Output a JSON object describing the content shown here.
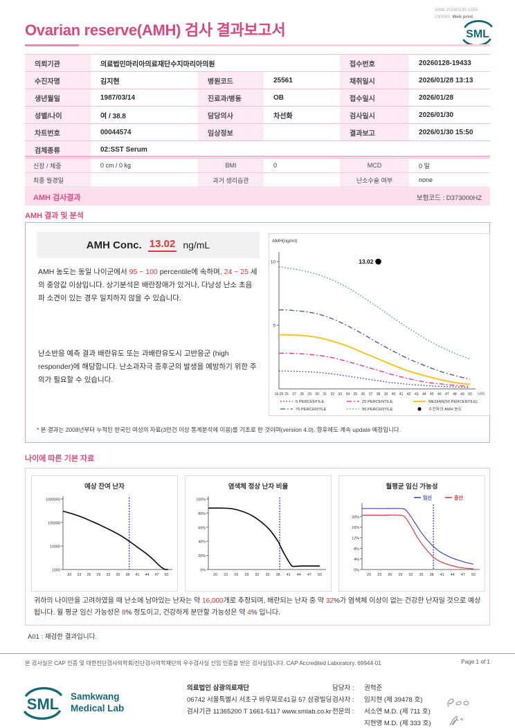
{
  "meta": {
    "print_code_line1": "3068-20260130-1555",
    "print_code_line2": "230083",
    "print_mode": "Web print"
  },
  "header": {
    "title": "Ovarian reserve(AMH) 검사 결과보고서",
    "logo_text": "SML"
  },
  "colors": {
    "accent_pink": "#d6487e",
    "label_bg": "#fce9f1",
    "banner_bg": "#fbdfeb",
    "alert_red": "#e03531",
    "logo_teal": "#156a77"
  },
  "patient_table": {
    "r1": {
      "l1": "의뢰기관",
      "v1": "의료법인마리아의료재단수지마리아의원",
      "l3": "접수번호",
      "v3": "20260128-19433"
    },
    "r2": {
      "l1": "수진자명",
      "v1": "김지현",
      "l2": "병원코드",
      "v2": "25561",
      "l3": "채취일시",
      "v3": "2026/01/28 13:13"
    },
    "r3": {
      "l1": "생년월일",
      "v1": "1987/03/14",
      "l2": "진료과/병동",
      "v2": "OB",
      "l3": "접수일시",
      "v3": "2026/01/28"
    },
    "r4": {
      "l1": "성별/나이",
      "v1": "여 / 38.8",
      "l2": "담당의사",
      "v2": "차선화",
      "l3": "검사일시",
      "v3": "2026/01/30"
    },
    "r5": {
      "l1": "차트번호",
      "v1": "00044574",
      "l2": "임상정보",
      "v2": "",
      "l3": "결과보고",
      "v3": "2026/01/30 15:50"
    },
    "r6": {
      "l1": "검체종류",
      "v1": "02:SST Serum"
    }
  },
  "measure_table": {
    "r1": {
      "l1": "신장 / 체중",
      "v1": "0 cm / 0 kg",
      "l2": "BMI",
      "v2": "0",
      "l3": "MCD",
      "v3": "0 일"
    },
    "r2": {
      "l1": "최종 월경일",
      "v1": "",
      "l2": "과거 생리습관",
      "v2": "",
      "l3": "난소수술 여부",
      "v3": "none"
    }
  },
  "banner": {
    "title": "AMH 검사결과",
    "insurance_code": "보험코드 : D373000HZ"
  },
  "analysis": {
    "section_title": "AMH 결과 및 분석",
    "conc_label": "AMH Conc.",
    "conc_value": "13.02",
    "conc_unit": "ng/mL",
    "para1": [
      {
        "t": "AMH 농도는 동일 나이군에서 "
      },
      {
        "t": "95 ~ 100"
      },
      {
        "t": " percentile에 속하며, "
      },
      {
        "t": "24 ~ 25"
      },
      {
        "t": " 세의 중앙값 이상입니다. 상기분석은 배란장애가 있거나, 다낭성 난소 초음파 소견이 있는 경우 일치하지 않을 수 있습니다."
      }
    ],
    "para2": "난소반응 예측 결과 배란유도 또는 과배란유도시 고반응군 (high responder)에 해당합니다. 난소과자극 증후군의 발생을 예방하기 위한 주의가 필요할 수 있습니다.",
    "footnote": "* 본 결과는 2008년부터 누적된 한국인 여성의 자료(3만건 이상 통계분석에 이용)를 기초로 한 것이며(version 4.0), 향후에도 계속 update 예정입니다."
  },
  "age_section": {
    "section_title": "나이에 따른 기본 자료",
    "summary": [
      {
        "t": "귀하의 나이만을 고려하였을 때 난소에 남아있는 난자는 약 "
      },
      {
        "t": "16,000"
      },
      {
        "t": "개로 추정되며, 배란되는 난자 중 약 "
      },
      {
        "t": "32"
      },
      {
        "t": "%가 염색체 이상이 없는 건강한 난자일 것으로 예상됩니다. 월 평균 임신 가능성은 "
      },
      {
        "t": "8"
      },
      {
        "t": "% 정도이고, 건강하게 분만할 가능성은 약 "
      },
      {
        "t": "4"
      },
      {
        "t": "% 입니다."
      }
    ],
    "note_a01": "A01 : 재검한 결과입니다."
  },
  "chart_data": [
    {
      "type": "line",
      "title": "AMH percentile curves by age",
      "ylabel": "AMH(ng/ml)",
      "xlabel": "나이",
      "ylim": [
        0,
        11
      ],
      "yticks": [
        5,
        10
      ],
      "x_ticks": [
        "16-25",
        "26",
        "27",
        "28",
        "29",
        "30",
        "31",
        "32",
        "33",
        "34",
        "35",
        "36",
        "37",
        "38",
        "39",
        "40",
        "41",
        "42",
        "43",
        "44",
        "45",
        "46",
        "47",
        "48",
        "49",
        "50"
      ],
      "patient": {
        "age": 38,
        "value": 13.02,
        "plot_value": 10,
        "label": "13.02"
      },
      "series": [
        {
          "name": "5 PERCENTILE",
          "color": "#2b3990",
          "style": "dotted",
          "points": [
            [
              16,
              1.4
            ],
            [
              26,
              1.4
            ],
            [
              28,
              1.37
            ],
            [
              30,
              1.3
            ],
            [
              32,
              1.18
            ],
            [
              34,
              1.0
            ],
            [
              36,
              0.82
            ],
            [
              38,
              0.64
            ],
            [
              40,
              0.48
            ],
            [
              42,
              0.36
            ],
            [
              44,
              0.27
            ],
            [
              46,
              0.2
            ],
            [
              48,
              0.15
            ],
            [
              50,
              0.12
            ]
          ]
        },
        {
          "name": "25 PERCENTILE",
          "color": "#ec268f",
          "style": "dashdot",
          "points": [
            [
              16,
              2.8
            ],
            [
              26,
              2.8
            ],
            [
              28,
              2.75
            ],
            [
              30,
              2.65
            ],
            [
              32,
              2.45
            ],
            [
              34,
              2.15
            ],
            [
              36,
              1.8
            ],
            [
              38,
              1.45
            ],
            [
              40,
              1.1
            ],
            [
              42,
              0.8
            ],
            [
              44,
              0.55
            ],
            [
              46,
              0.4
            ],
            [
              48,
              0.28
            ],
            [
              50,
              0.2
            ]
          ]
        },
        {
          "name": "MEDIAN(50 PERCENTILE)",
          "color": "#f7c51e",
          "style": "solid",
          "points": [
            [
              16,
              4.25
            ],
            [
              26,
              4.25
            ],
            [
              28,
              4.2
            ],
            [
              30,
              4.05
            ],
            [
              32,
              3.75
            ],
            [
              34,
              3.35
            ],
            [
              36,
              2.85
            ],
            [
              38,
              2.35
            ],
            [
              40,
              1.85
            ],
            [
              42,
              1.4
            ],
            [
              44,
              1.05
            ],
            [
              46,
              0.75
            ],
            [
              48,
              0.5
            ],
            [
              50,
              0.35
            ]
          ]
        },
        {
          "name": "75 PERCENTILE",
          "color": "#3953a4",
          "style": "dashdot",
          "points": [
            [
              16,
              6.2
            ],
            [
              26,
              6.2
            ],
            [
              28,
              6.1
            ],
            [
              30,
              5.9
            ],
            [
              32,
              5.5
            ],
            [
              34,
              4.95
            ],
            [
              36,
              4.3
            ],
            [
              38,
              3.6
            ],
            [
              40,
              2.95
            ],
            [
              42,
              2.35
            ],
            [
              44,
              1.85
            ],
            [
              46,
              1.4
            ],
            [
              48,
              1.05
            ],
            [
              50,
              0.75
            ]
          ]
        },
        {
          "name": "95 PERCENTILE",
          "color": "#3e9e63",
          "style": "dotted",
          "points": [
            [
              16,
              9.6
            ],
            [
              26,
              9.5
            ],
            [
              28,
              9.3
            ],
            [
              30,
              9.0
            ],
            [
              32,
              8.55
            ],
            [
              34,
              7.95
            ],
            [
              36,
              7.2
            ],
            [
              38,
              6.4
            ],
            [
              40,
              5.55
            ],
            [
              42,
              4.75
            ],
            [
              44,
              4.0
            ],
            [
              46,
              3.35
            ],
            [
              48,
              2.8
            ],
            [
              50,
              2.35
            ]
          ]
        }
      ],
      "legend": [
        [
          {
            "label": "5 PERCENTILE",
            "color": "#2b3990",
            "style": "dotted"
          },
          {
            "label": "25 PERCENTILE",
            "color": "#ec268f",
            "style": "dashdot"
          },
          {
            "label": "MEDIAN(50 PERCENTILE)",
            "color": "#f7c51e",
            "style": "solid"
          }
        ],
        [
          {
            "label": "75 PERCENTILE",
            "color": "#3953a4",
            "style": "dashdot"
          },
          {
            "label": "95 PERCENTILE",
            "color": "#3e9e63",
            "style": "dotted"
          },
          {
            "label": "수진자의 AMH 농도",
            "marker": "dot"
          }
        ]
      ],
      "legend_position": "bottom",
      "grid": false
    },
    {
      "type": "line",
      "title": "예상 잔여 난자",
      "yscale": "log",
      "ylim": [
        1000,
        1000000
      ],
      "yticks": [
        {
          "v": 1000000,
          "label": "1000000"
        },
        {
          "v": 100000,
          "label": "100000"
        },
        {
          "v": 10000,
          "label": "10000"
        },
        {
          "v": 1000,
          "label": "1000"
        }
      ],
      "xticks": [
        20,
        23,
        26,
        29,
        32,
        35,
        38,
        41,
        44,
        47,
        50
      ],
      "vline": 38.5,
      "points": [
        [
          18,
          300000
        ],
        [
          21,
          230000
        ],
        [
          24,
          165000
        ],
        [
          27,
          110000
        ],
        [
          30,
          72000
        ],
        [
          33,
          45000
        ],
        [
          36,
          27000
        ],
        [
          38.5,
          16000
        ],
        [
          41,
          9000
        ],
        [
          44,
          4500
        ],
        [
          46,
          2600
        ],
        [
          48,
          1400
        ],
        [
          49.5,
          1000
        ],
        [
          50.5,
          1000
        ]
      ]
    },
    {
      "type": "line",
      "title": "염색체 정상 난자 비율",
      "ymax": 100,
      "yticks": [
        {
          "v": 0,
          "label": "0%"
        },
        {
          "v": 20,
          "label": "20%"
        },
        {
          "v": 40,
          "label": "40%"
        },
        {
          "v": 60,
          "label": "60%"
        },
        {
          "v": 80,
          "label": "80%"
        },
        {
          "v": 100,
          "label": "100%"
        }
      ],
      "xticks": [
        20,
        23,
        26,
        29,
        32,
        35,
        38,
        41,
        44,
        47,
        50
      ],
      "vline": 38.5,
      "points": [
        [
          18,
          87
        ],
        [
          22,
          87
        ],
        [
          25,
          86
        ],
        [
          28,
          82
        ],
        [
          31,
          75
        ],
        [
          34,
          64
        ],
        [
          36,
          54
        ],
        [
          38,
          40
        ],
        [
          38.5,
          35
        ],
        [
          39.5,
          25
        ],
        [
          41,
          12
        ],
        [
          42,
          5
        ],
        [
          43,
          4.5
        ],
        [
          45,
          5
        ],
        [
          50,
          5
        ]
      ]
    },
    {
      "type": "line",
      "title": "월평균 임신 가능성",
      "ymax": 24,
      "yticks": [
        {
          "v": 0,
          "label": "0%"
        },
        {
          "v": 4,
          "label": "4%"
        },
        {
          "v": 8,
          "label": "8%"
        },
        {
          "v": 12,
          "label": "12%"
        },
        {
          "v": 16,
          "label": "16%"
        },
        {
          "v": 20,
          "label": "20%"
        }
      ],
      "xticks": [
        20,
        23,
        26,
        29,
        32,
        35,
        38,
        41,
        44,
        47,
        50
      ],
      "vline": 38.5,
      "legend_inline": [
        {
          "label": "임신",
          "color": "#3b49c0"
        },
        {
          "label": "출산",
          "color": "#d7373f"
        }
      ],
      "series": [
        {
          "name": "임신",
          "color": "#3b49c0",
          "points": [
            [
              18,
              23
            ],
            [
              24,
              23
            ],
            [
              29,
              23
            ],
            [
              30.5,
              22.5
            ],
            [
              32,
              20
            ],
            [
              33.5,
              17
            ],
            [
              35,
              14
            ],
            [
              36.5,
              11.5
            ],
            [
              38,
              9.3
            ],
            [
              38.5,
              8.7
            ],
            [
              40,
              7
            ],
            [
              42,
              5.5
            ],
            [
              44,
              4.3
            ],
            [
              46,
              3.4
            ],
            [
              48,
              2.6
            ],
            [
              50,
              2.0
            ]
          ]
        },
        {
          "name": "출산",
          "color": "#d7373f",
          "points": [
            [
              18,
              20.5
            ],
            [
              24,
              20.5
            ],
            [
              29,
              20.5
            ],
            [
              30.5,
              19.5
            ],
            [
              32,
              16.5
            ],
            [
              33.5,
              13
            ],
            [
              35,
              10
            ],
            [
              36.5,
              7.5
            ],
            [
              38,
              5.3
            ],
            [
              38.5,
              4.6
            ],
            [
              40,
              3.3
            ],
            [
              42,
              2.2
            ],
            [
              44,
              1.4
            ],
            [
              46,
              0.8
            ],
            [
              48,
              0.45
            ],
            [
              50,
              0.3
            ]
          ]
        }
      ]
    }
  ],
  "footer": {
    "cap_line": "본 검사실은 CAP 인증 및 대한진단검사의학회/진단검사의학재단의 우수검사실 신임 인증을 받은 검사실입니다.  CAP Accredited Laboratory. 69944-01",
    "page": "Page 1 of 1",
    "logo_text": "SML",
    "logo_name_line1": "Samkwang",
    "logo_name_line2": "Medical Lab",
    "org_name": "의료법인 삼광의료재단",
    "org_addr": "06742 서울특별시 서초구 바우뫼로41길 57 삼광빌딩",
    "org_contact": "검사기관 11365200  T 1661-5117  www.smlab.co.kr",
    "staff": [
      {
        "role": "담당자 :",
        "name": "권혁준"
      },
      {
        "role": "검사자 :",
        "name": "임지현 (제 39478 호)"
      },
      {
        "role": "전문의 :",
        "name": "서소연 M.D. (제 711 호)"
      },
      {
        "role": "",
        "name": "지현영 M.D. (제 333 호)"
      }
    ]
  }
}
